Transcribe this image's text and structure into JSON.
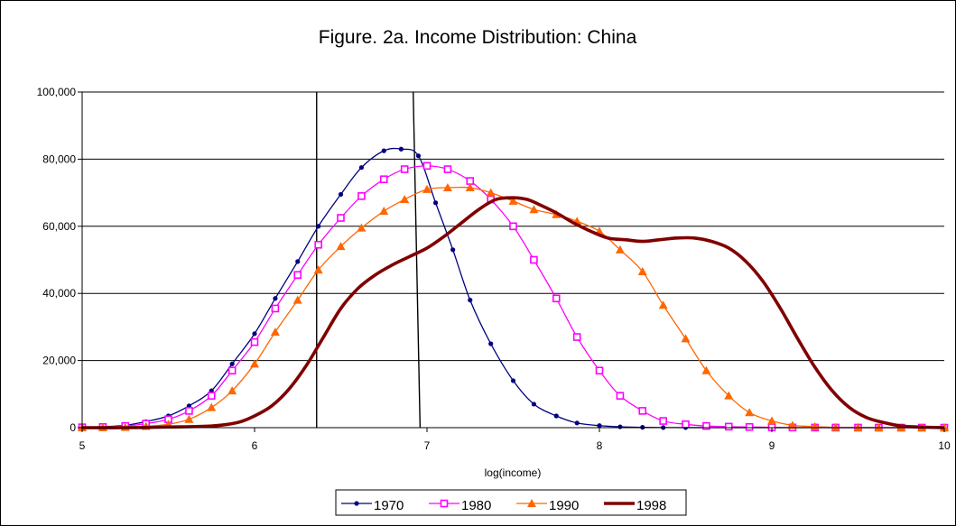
{
  "chart_data": {
    "type": "line",
    "title": "Figure. 2a. Income Distribution: China",
    "xlabel": "log(income)",
    "ylabel": "",
    "xlim": [
      5,
      10
    ],
    "ylim": [
      0,
      100000
    ],
    "xticks": [
      5,
      6,
      7,
      8,
      9,
      10
    ],
    "xtick_labels": [
      "5",
      "6",
      "7",
      "8",
      "9",
      "10"
    ],
    "yticks": [
      0,
      20000,
      40000,
      60000,
      80000,
      100000
    ],
    "ytick_labels": [
      "0",
      "20,000",
      "40,000",
      "60,000",
      "80,000",
      "100,000"
    ],
    "grid": "horizontal",
    "legend_position": "bottom",
    "reference_lines": [
      {
        "x_bottom": 6.36,
        "x_top": 6.36
      },
      {
        "x_bottom": 6.96,
        "x_top": 6.92
      }
    ],
    "series": [
      {
        "name": "1970",
        "color": "#000080",
        "marker": "circle",
        "x": [
          5.0,
          5.12,
          5.25,
          5.37,
          5.5,
          5.62,
          5.75,
          5.87,
          6.0,
          6.12,
          6.25,
          6.37,
          6.5,
          6.62,
          6.75,
          6.85,
          6.95,
          7.05,
          7.15,
          7.25,
          7.37,
          7.5,
          7.62,
          7.75,
          7.87,
          8.0,
          8.12,
          8.25,
          8.37,
          8.5,
          8.62,
          8.75,
          9.0,
          9.5,
          10.0
        ],
        "y": [
          100,
          300,
          700,
          1800,
          3500,
          6500,
          11000,
          19000,
          28000,
          38500,
          49500,
          60000,
          69500,
          77500,
          82500,
          83000,
          81000,
          67000,
          53000,
          38000,
          25000,
          14000,
          7000,
          3500,
          1400,
          600,
          250,
          100,
          40,
          20,
          10,
          0,
          0,
          0,
          0
        ]
      },
      {
        "name": "1980",
        "color": "#FF00FF",
        "marker": "square",
        "x": [
          5.0,
          5.12,
          5.25,
          5.37,
          5.5,
          5.62,
          5.75,
          5.87,
          6.0,
          6.12,
          6.25,
          6.37,
          6.5,
          6.62,
          6.75,
          6.87,
          7.0,
          7.12,
          7.25,
          7.37,
          7.5,
          7.62,
          7.75,
          7.87,
          8.0,
          8.12,
          8.25,
          8.37,
          8.5,
          8.62,
          8.75,
          8.87,
          9.0,
          9.12,
          9.25,
          9.37,
          9.5,
          9.62,
          9.75,
          9.87,
          10.0
        ],
        "y": [
          100,
          200,
          500,
          1200,
          2500,
          5000,
          9500,
          17000,
          25500,
          35500,
          45500,
          54500,
          62500,
          69000,
          74000,
          77000,
          78000,
          77000,
          73500,
          68000,
          60000,
          50000,
          38500,
          27000,
          17000,
          9500,
          5000,
          2000,
          1000,
          500,
          300,
          200,
          100,
          50,
          30,
          20,
          10,
          0,
          0,
          0,
          0
        ]
      },
      {
        "name": "1990",
        "color": "#FF6600",
        "marker": "triangle",
        "x": [
          5.0,
          5.12,
          5.25,
          5.37,
          5.5,
          5.62,
          5.75,
          5.87,
          6.0,
          6.12,
          6.25,
          6.37,
          6.5,
          6.62,
          6.75,
          6.87,
          7.0,
          7.12,
          7.25,
          7.37,
          7.5,
          7.62,
          7.75,
          7.87,
          8.0,
          8.12,
          8.25,
          8.37,
          8.5,
          8.62,
          8.75,
          8.87,
          9.0,
          9.12,
          9.25,
          9.37,
          9.5,
          9.62,
          9.75,
          9.87,
          10.0
        ],
        "y": [
          0,
          0,
          100,
          400,
          1000,
          2500,
          6000,
          11000,
          19000,
          28500,
          38000,
          47000,
          54000,
          59500,
          64500,
          68000,
          71000,
          71500,
          71500,
          70000,
          67500,
          65000,
          63500,
          61500,
          58500,
          53000,
          46500,
          36500,
          26500,
          17000,
          9500,
          4500,
          2000,
          700,
          300,
          100,
          50,
          0,
          0,
          0,
          0
        ]
      },
      {
        "name": "1998",
        "color": "#800000",
        "marker": "none",
        "x": [
          5.0,
          5.25,
          5.5,
          5.75,
          5.9,
          6.0,
          6.1,
          6.2,
          6.3,
          6.4,
          6.5,
          6.6,
          6.7,
          6.8,
          6.9,
          7.0,
          7.1,
          7.2,
          7.3,
          7.4,
          7.5,
          7.58,
          7.65,
          7.75,
          7.85,
          7.95,
          8.05,
          8.15,
          8.25,
          8.35,
          8.45,
          8.55,
          8.65,
          8.75,
          8.85,
          8.95,
          9.05,
          9.15,
          9.25,
          9.35,
          9.45,
          9.55,
          9.65,
          9.75,
          9.85,
          10.0
        ],
        "y": [
          0,
          0,
          200,
          500,
          1500,
          3500,
          6500,
          11500,
          18500,
          27000,
          35500,
          41500,
          45500,
          48500,
          51000,
          53500,
          57000,
          61000,
          65000,
          68000,
          68500,
          68000,
          66500,
          64000,
          61000,
          58500,
          56500,
          56000,
          55500,
          56000,
          56500,
          56500,
          55500,
          53500,
          49500,
          43500,
          35500,
          26500,
          18000,
          11000,
          6000,
          3000,
          1500,
          500,
          200,
          0
        ]
      }
    ]
  }
}
